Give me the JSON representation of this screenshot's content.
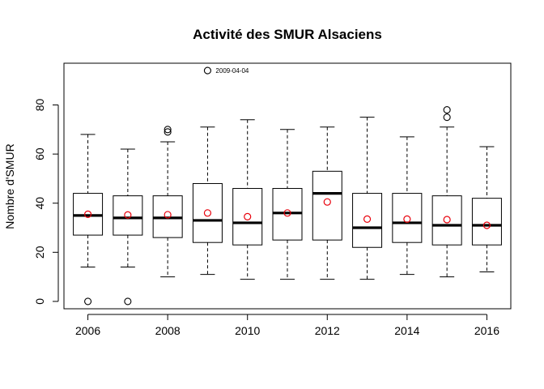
{
  "chart_data": {
    "type": "boxplot",
    "title": "Activité des SMUR Alsaciens",
    "xlabel": "",
    "ylabel": "Nombre d'SMUR",
    "ylim": [
      -3,
      97
    ],
    "yticks": [
      0,
      20,
      40,
      60,
      80
    ],
    "x_tick_labels": [
      "2006",
      "2008",
      "2010",
      "2012",
      "2014",
      "2016"
    ],
    "categories": [
      "2006",
      "2007",
      "2008",
      "2009",
      "2010",
      "2011",
      "2012",
      "2013",
      "2014",
      "2015",
      "2016"
    ],
    "boxes": [
      {
        "category": "2006",
        "whisker_low": 14,
        "q1": 27,
        "median": 35,
        "q3": 44,
        "whisker_high": 68,
        "mean": 35.5,
        "outliers": [
          0
        ]
      },
      {
        "category": "2007",
        "whisker_low": 14,
        "q1": 27,
        "median": 34,
        "q3": 43,
        "whisker_high": 62,
        "mean": 35.2,
        "outliers": [
          0
        ]
      },
      {
        "category": "2008",
        "whisker_low": 10,
        "q1": 26,
        "median": 34,
        "q3": 43,
        "whisker_high": 65,
        "mean": 35.3,
        "outliers": [
          69,
          70
        ]
      },
      {
        "category": "2009",
        "whisker_low": 11,
        "q1": 24,
        "median": 33,
        "q3": 48,
        "whisker_high": 71,
        "mean": 36,
        "outliers": [
          94
        ]
      },
      {
        "category": "2010",
        "whisker_low": 9,
        "q1": 23,
        "median": 32,
        "q3": 46,
        "whisker_high": 74,
        "mean": 34.5,
        "outliers": []
      },
      {
        "category": "2011",
        "whisker_low": 9,
        "q1": 25,
        "median": 36,
        "q3": 46,
        "whisker_high": 70,
        "mean": 36,
        "outliers": []
      },
      {
        "category": "2012",
        "whisker_low": 9,
        "q1": 25,
        "median": 44,
        "q3": 53,
        "whisker_high": 71,
        "mean": 40.5,
        "outliers": []
      },
      {
        "category": "2013",
        "whisker_low": 9,
        "q1": 22,
        "median": 30,
        "q3": 44,
        "whisker_high": 75,
        "mean": 33.5,
        "outliers": []
      },
      {
        "category": "2014",
        "whisker_low": 11,
        "q1": 24,
        "median": 32,
        "q3": 44,
        "whisker_high": 67,
        "mean": 33.5,
        "outliers": []
      },
      {
        "category": "2015",
        "whisker_low": 10,
        "q1": 23,
        "median": 31,
        "q3": 43,
        "whisker_high": 71,
        "mean": 33.3,
        "outliers": [
          75,
          78
        ]
      },
      {
        "category": "2016",
        "whisker_low": 12,
        "q1": 23,
        "median": 31,
        "q3": 42,
        "whisker_high": 63,
        "mean": 31,
        "outliers": []
      }
    ],
    "annotations": [
      {
        "text": "2009-04-04",
        "category": "2009",
        "value": 94
      }
    ],
    "mean_color": "#e8000b",
    "box_color": "#000000",
    "grid": false,
    "legend": "none"
  }
}
